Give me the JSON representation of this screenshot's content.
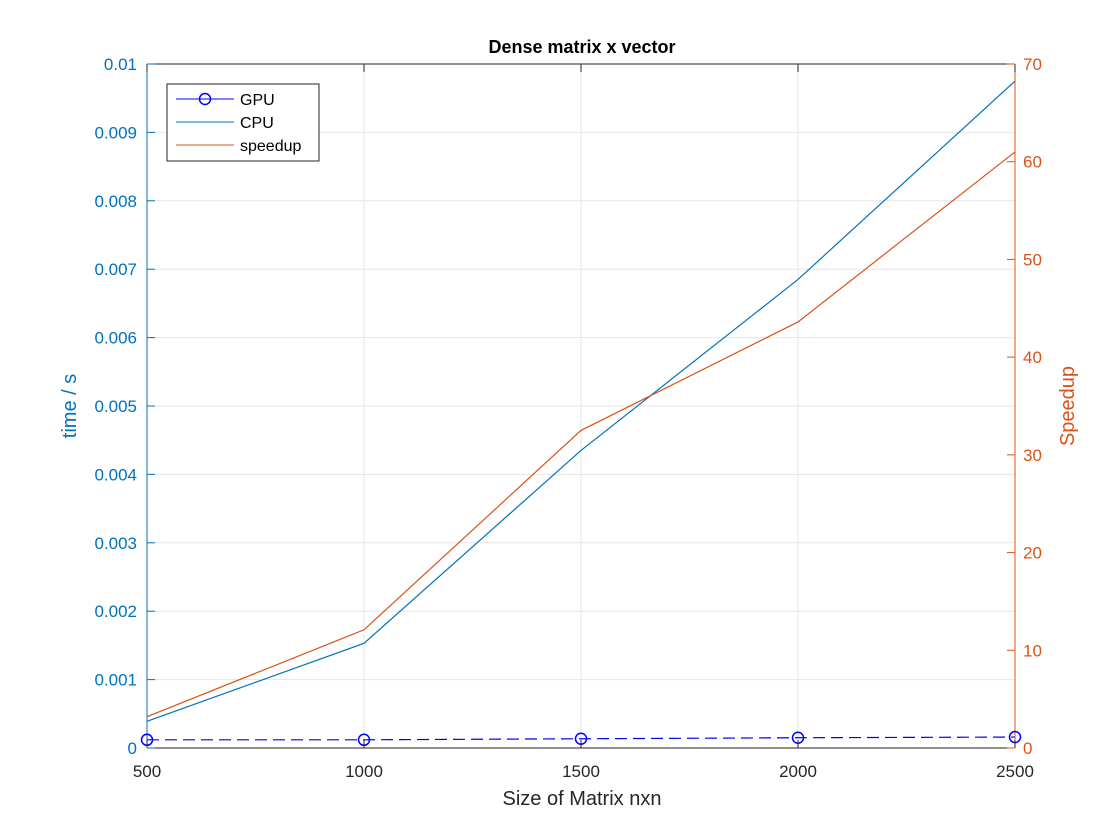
{
  "chart_data": {
    "type": "line",
    "title": "Dense matrix x vector",
    "xlabel": "Size of Matrix nxn",
    "ylabel": "time / s",
    "ylabel_right": "Speedup",
    "x": [
      500,
      1000,
      1500,
      2000,
      2500
    ],
    "xlim": [
      500,
      2500
    ],
    "ylim": [
      0,
      0.01
    ],
    "ylim_right": [
      0,
      70
    ],
    "xticks": [
      "500",
      "1000",
      "1500",
      "2000",
      "2500"
    ],
    "yticks": [
      "0",
      "0.001",
      "0.002",
      "0.003",
      "0.004",
      "0.005",
      "0.006",
      "0.007",
      "0.008",
      "0.009",
      "0.01"
    ],
    "yticks_right": [
      "0",
      "10",
      "20",
      "30",
      "40",
      "50",
      "60",
      "70"
    ],
    "grid": true,
    "legend_position": "top-left",
    "series": [
      {
        "name": "GPU",
        "axis": "left",
        "values": [
          0.00012,
          0.00012,
          0.000135,
          0.00015,
          0.00016
        ],
        "color": "#0000ff",
        "style": "dashed",
        "marker": "circle"
      },
      {
        "name": "CPU",
        "axis": "left",
        "values": [
          0.00039,
          0.00153,
          0.00435,
          0.00685,
          0.00975
        ],
        "color": "#0072bd",
        "style": "solid",
        "marker": "none"
      },
      {
        "name": "speedup",
        "axis": "right",
        "values": [
          3.2,
          12.1,
          32.5,
          43.6,
          61.0
        ],
        "color": "#d95319",
        "style": "solid",
        "marker": "none"
      }
    ],
    "colors": {
      "left_axis": "#0072bd",
      "right_axis": "#d95319",
      "grid": "#e6e6e6"
    }
  }
}
